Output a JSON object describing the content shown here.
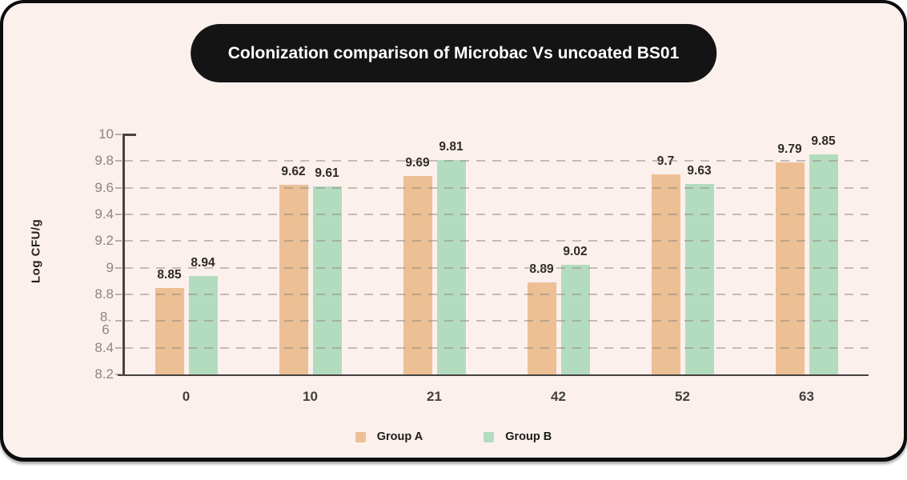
{
  "title": "Colonization comparison of Microbac Vs uncoated BS01",
  "chart_data": {
    "type": "bar",
    "title": "Colonization comparison of Microbac Vs uncoated BS01",
    "categories": [
      "0",
      "10",
      "21",
      "42",
      "52",
      "63"
    ],
    "series": [
      {
        "name": "Group A",
        "color": "#ecbf94",
        "values": [
          8.85,
          9.62,
          9.69,
          8.89,
          9.7,
          9.79
        ]
      },
      {
        "name": "Group B",
        "color": "#b3dcbf",
        "values": [
          8.94,
          9.61,
          9.81,
          9.02,
          9.63,
          9.85
        ]
      }
    ],
    "xlabel": "",
    "ylabel": "Log CFU/g",
    "ylim": [
      8.2,
      10
    ],
    "yticks": [
      "10",
      "9.8",
      "9.6",
      "9.4",
      "9.2",
      "9",
      "8.8",
      "8.6",
      "8.4",
      "8.2"
    ],
    "ytick_wrap_index": 7,
    "grid": "horizontal-dashed-over-bars",
    "legend_position": "bottom-center"
  },
  "colors": {
    "card_background": "#fcf0ed",
    "frame": "#0c0c0c",
    "title_pill_background": "#141414",
    "title_text": "#ffffff",
    "axis": "#46423f",
    "gridline": "#8d847f",
    "ytick_text": "#8d8480",
    "xtick_text": "#44403d",
    "value_label_text": "#2e2a27"
  }
}
